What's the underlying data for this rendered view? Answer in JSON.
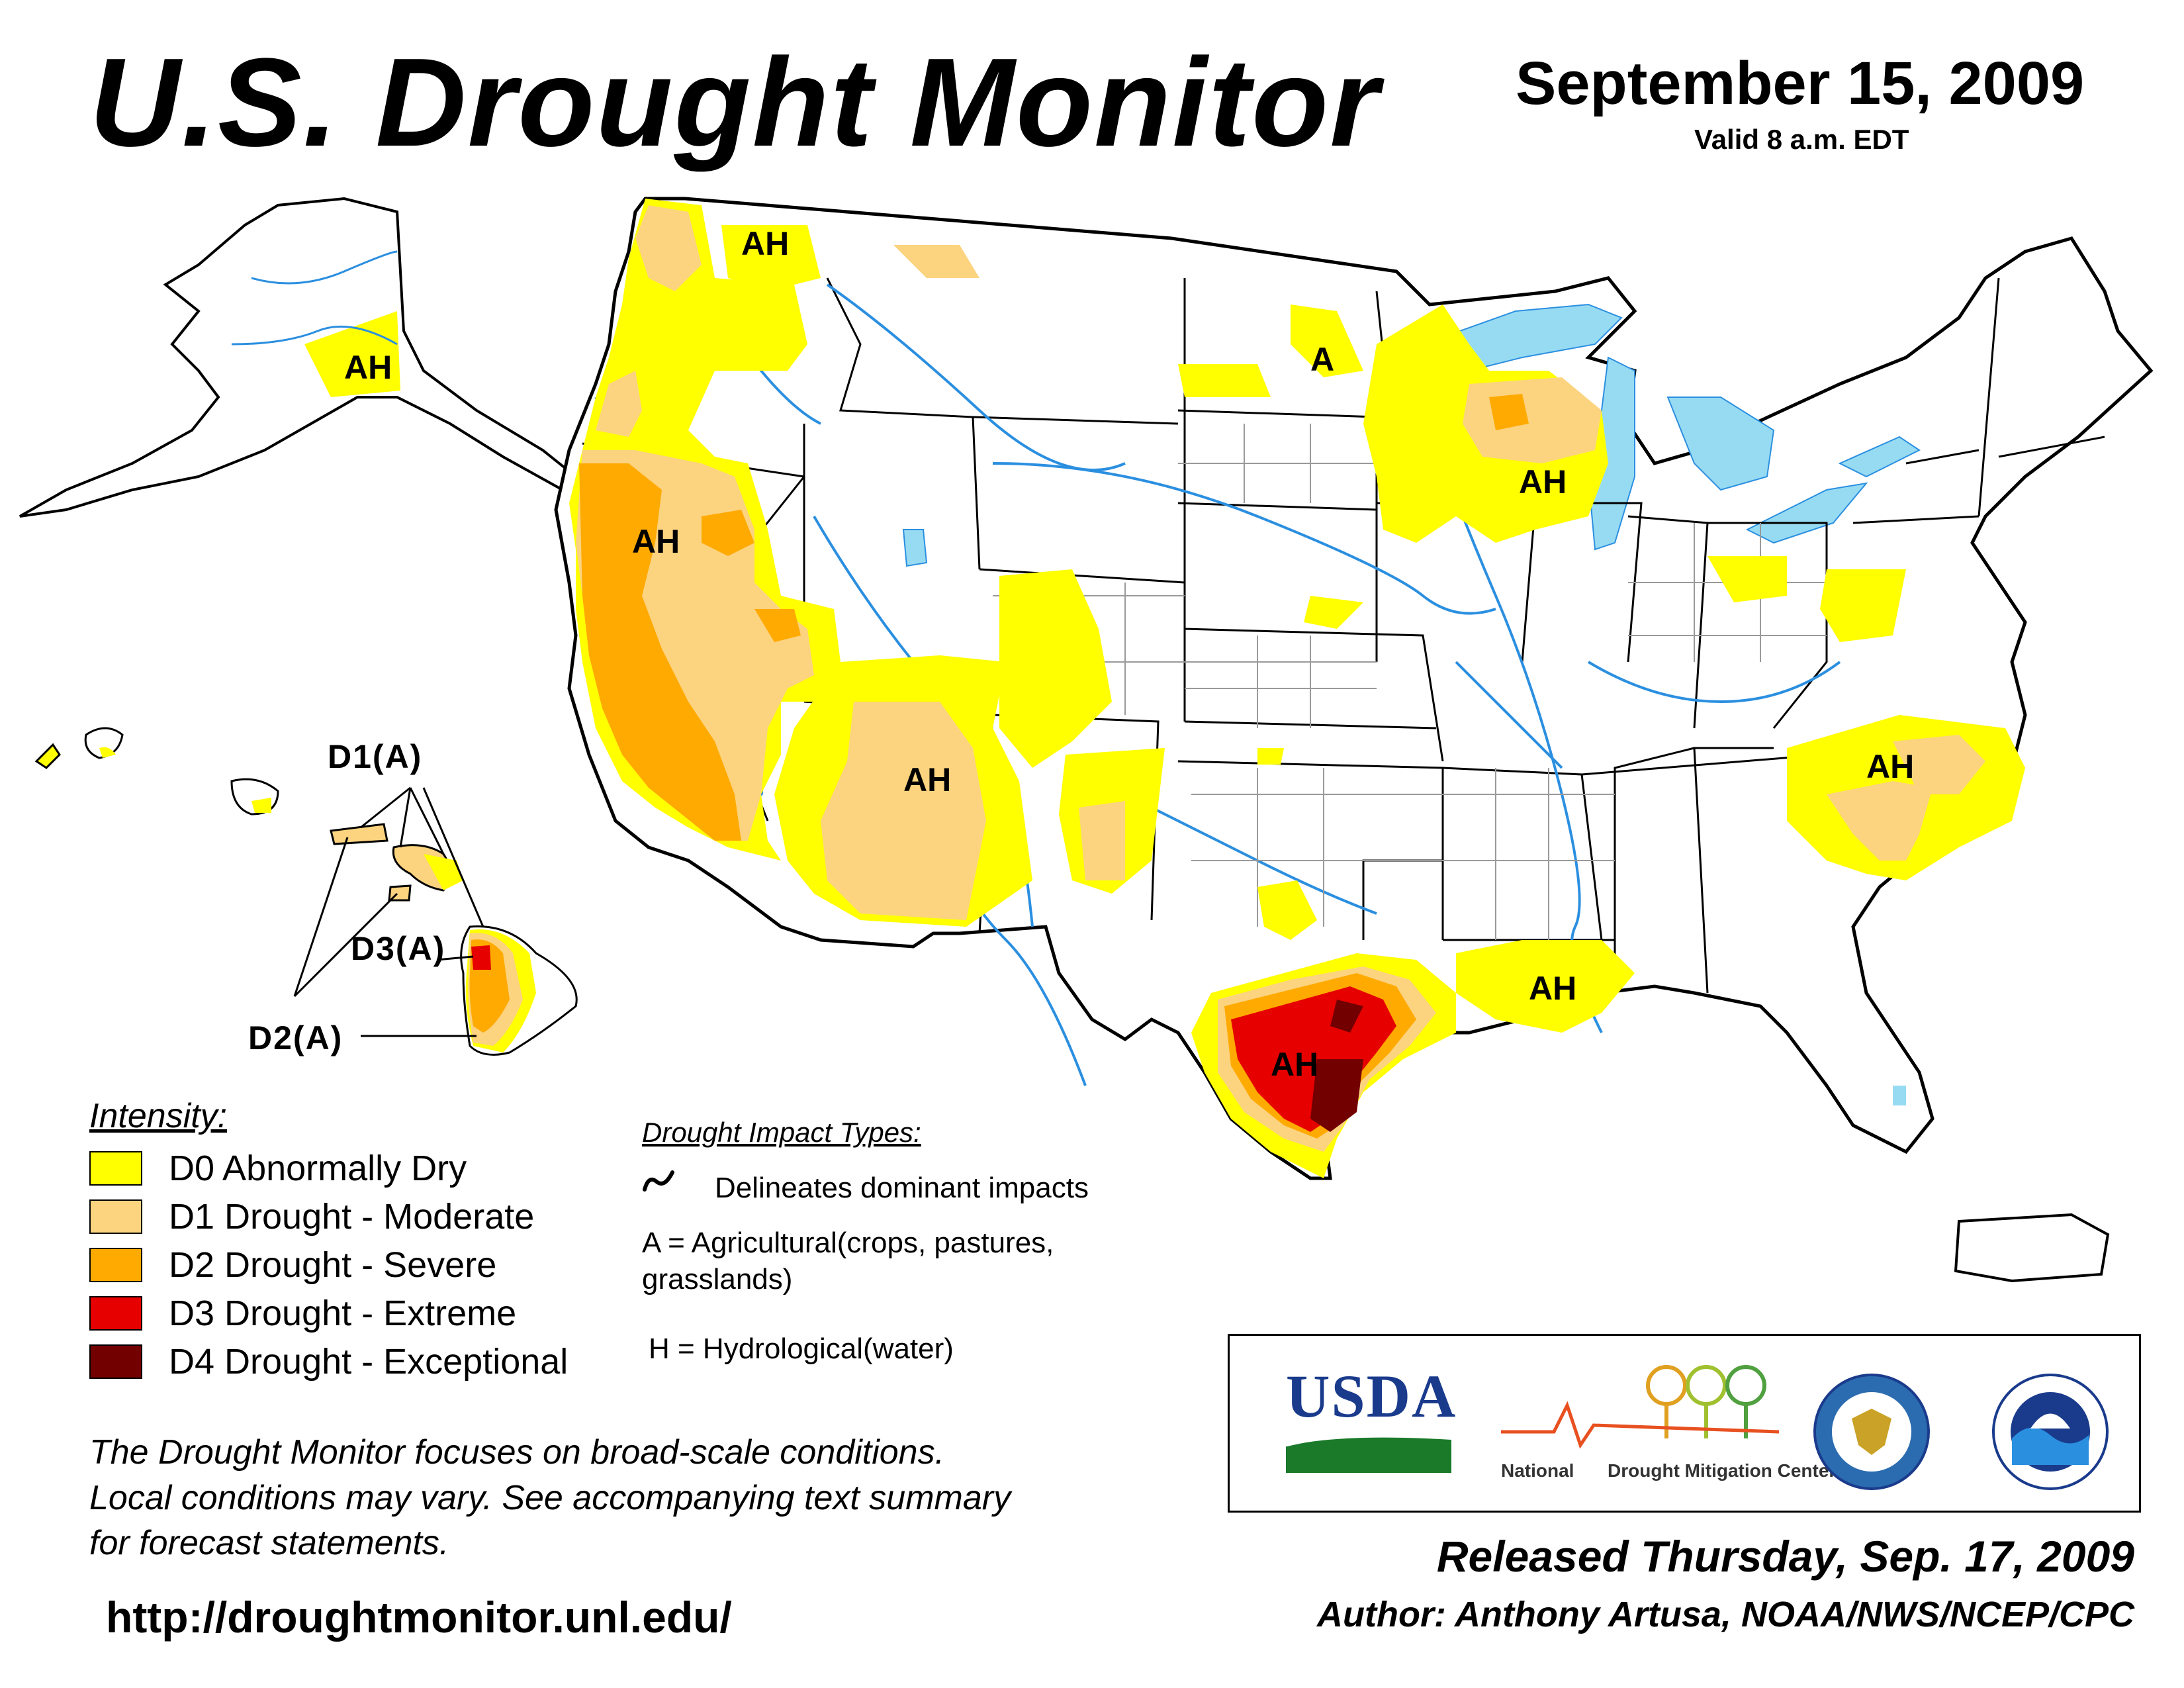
{
  "header": {
    "title": "U.S. Drought Monitor",
    "date": "September 15, 2009",
    "valid": "Valid 8 a.m. EDT"
  },
  "map_labels": {
    "alaska": "AH",
    "pacific_northwest": "AH",
    "california_nevada": "AH",
    "arizona": "AH",
    "north_dakota": "A",
    "wisconsin": "AH",
    "carolinas": "AH",
    "louisiana": "AH",
    "texas": "AH",
    "hawaii_d1": "D1(A)",
    "hawaii_d3": "D3(A)",
    "hawaii_d2": "D2(A)"
  },
  "legend": {
    "title": "Intensity:",
    "items": [
      {
        "label": "D0 Abnormally Dry",
        "color": "#ffff00"
      },
      {
        "label": "D1 Drought - Moderate",
        "color": "#fcd37f"
      },
      {
        "label": "D2 Drought - Severe",
        "color": "#ffaa00"
      },
      {
        "label": "D3 Drought - Extreme",
        "color": "#e60000"
      },
      {
        "label": "D4 Drought - Exceptional",
        "color": "#730000"
      }
    ]
  },
  "impacts": {
    "title": "Drought Impact Types:",
    "delineates": "Delineates dominant impacts",
    "agricultural_line1": "A = Agricultural(crops, pastures,",
    "agricultural_line2": "grasslands)",
    "hydrological": "H = Hydrological(water)"
  },
  "note": {
    "line1": "The Drought Monitor focuses on broad-scale conditions.",
    "line2": "Local conditions may vary. See accompanying text summary",
    "line3": "for forecast statements."
  },
  "url": "http://droughtmonitor.unl.edu/",
  "logos": {
    "usda": "USDA",
    "ndmc_part1": "National",
    "ndmc_part2": "Drought Mitigation Center"
  },
  "footer": {
    "released": "Released Thursday, Sep. 17, 2009",
    "author": "Author: Anthony Artusa, NOAA/NWS/NCEP/CPC"
  },
  "colors": {
    "water": "#97dbf2",
    "river": "#2b8fe0",
    "boundary": "#000000",
    "county": "#9a9a9a"
  }
}
